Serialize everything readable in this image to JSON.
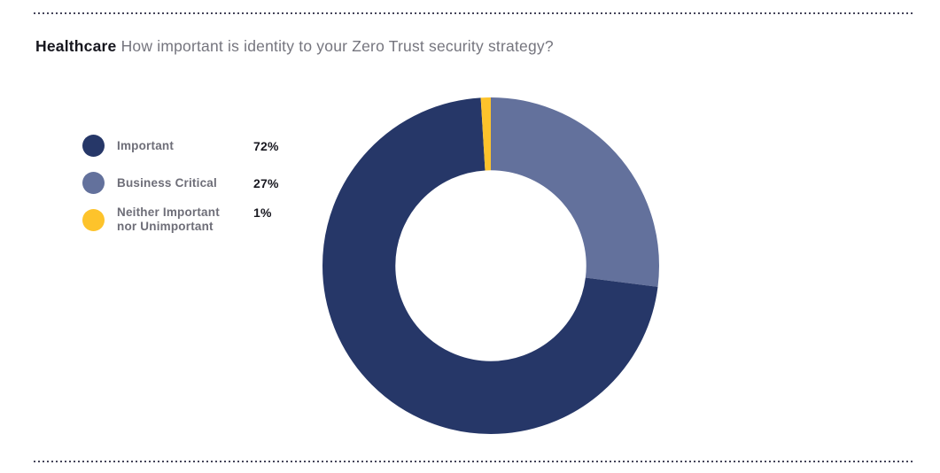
{
  "header": {
    "category": "Healthcare",
    "question": "How important is identity to your Zero Trust security strategy?"
  },
  "legend": {
    "items": [
      {
        "label": "Important",
        "value": "72%"
      },
      {
        "label": "Business Critical",
        "value": "27%"
      },
      {
        "label": "Neither Important nor Unimportant",
        "value": "1%"
      }
    ]
  },
  "chart_data": {
    "type": "pie",
    "subtype": "donut",
    "title": "Healthcare: How important is identity to your Zero Trust security strategy?",
    "unit": "percent",
    "segments": [
      {
        "label": "Important",
        "value": 72,
        "color": "#263768"
      },
      {
        "label": "Business Critical",
        "value": 27,
        "color": "#63719c"
      },
      {
        "label": "Neither Important nor Unimportant",
        "value": 1,
        "color": "#fdc32b"
      }
    ],
    "draw_order_clockwise_from_top": [
      "Business Critical",
      "Important",
      "Neither Important nor Unimportant"
    ],
    "inner_radius_ratio": 0.567,
    "legend_position": "left",
    "data_labels": "legend-only"
  }
}
